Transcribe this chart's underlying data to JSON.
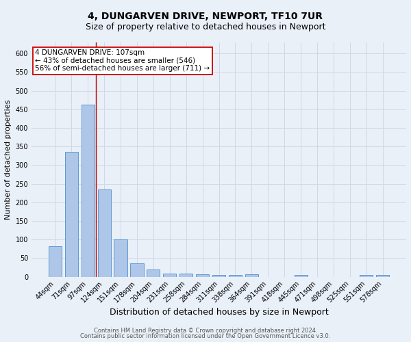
{
  "title_line1": "4, DUNGARVEN DRIVE, NEWPORT, TF10 7UR",
  "title_line2": "Size of property relative to detached houses in Newport",
  "xlabel": "Distribution of detached houses by size in Newport",
  "ylabel": "Number of detached properties",
  "footer_line1": "Contains HM Land Registry data © Crown copyright and database right 2024.",
  "footer_line2": "Contains public sector information licensed under the Open Government Licence v3.0.",
  "categories": [
    "44sqm",
    "71sqm",
    "97sqm",
    "124sqm",
    "151sqm",
    "178sqm",
    "204sqm",
    "231sqm",
    "258sqm",
    "284sqm",
    "311sqm",
    "338sqm",
    "364sqm",
    "391sqm",
    "418sqm",
    "445sqm",
    "471sqm",
    "498sqm",
    "525sqm",
    "551sqm",
    "578sqm"
  ],
  "values": [
    82,
    335,
    462,
    235,
    100,
    37,
    20,
    8,
    9,
    6,
    5,
    5,
    6,
    0,
    0,
    5,
    0,
    0,
    0,
    5,
    5
  ],
  "bar_color": "#aec6e8",
  "bar_edge_color": "#5b9bd5",
  "grid_color": "#d0d8e8",
  "background_color": "#eaf0f8",
  "red_line_x": 2.5,
  "annotation_text": "4 DUNGARVEN DRIVE: 107sqm\n← 43% of detached houses are smaller (546)\n56% of semi-detached houses are larger (711) →",
  "annotation_box_color": "#ffffff",
  "annotation_border_color": "#cc0000",
  "ylim": [
    0,
    630
  ],
  "yticks": [
    0,
    50,
    100,
    150,
    200,
    250,
    300,
    350,
    400,
    450,
    500,
    550,
    600
  ],
  "title_fontsize": 10,
  "subtitle_fontsize": 9,
  "xlabel_fontsize": 9,
  "ylabel_fontsize": 8,
  "tick_fontsize": 7,
  "footer_fontsize": 6,
  "annotation_fontsize": 7.5
}
